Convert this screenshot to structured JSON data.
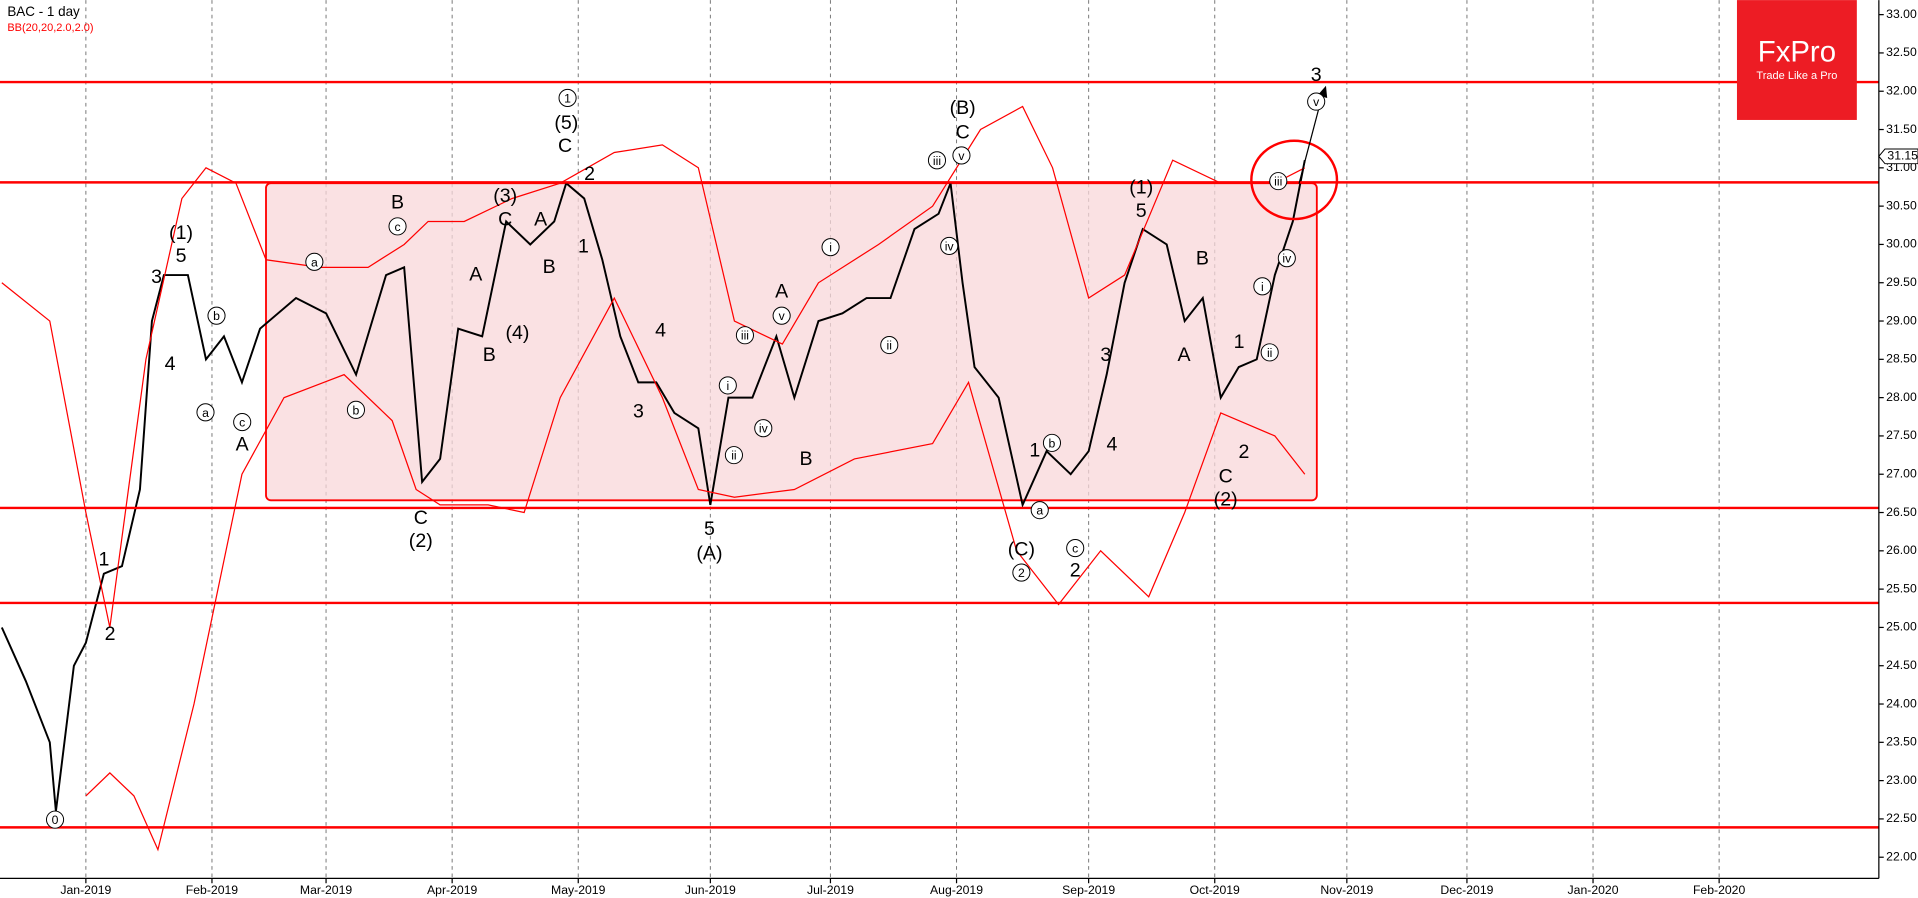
{
  "chart_data": {
    "type": "line",
    "title": "BAC  - 1 day",
    "subtitle": "BB(20,20,2.0,2.0)",
    "brand": "FxPro",
    "slogan": "Trade Like a Pro",
    "grid": true,
    "xlim": [
      -14.3,
      298.6
    ],
    "ylim": [
      21.82,
      33.19
    ],
    "xticks": [
      {
        "value": 0,
        "label": "Jan-2019"
      },
      {
        "value": 21,
        "label": "Feb-2019"
      },
      {
        "value": 40,
        "label": "Mar-2019"
      },
      {
        "value": 61,
        "label": "Apr-2019"
      },
      {
        "value": 82,
        "label": "May-2019"
      },
      {
        "value": 104,
        "label": "Jun-2019"
      },
      {
        "value": 124,
        "label": "Jul-2019"
      },
      {
        "value": 145,
        "label": "Aug-2019"
      },
      {
        "value": 167,
        "label": "Sep-2019"
      },
      {
        "value": 188,
        "label": "Oct-2019"
      },
      {
        "value": 210,
        "label": "Nov-2019"
      },
      {
        "value": 230,
        "label": "Dec-2019"
      },
      {
        "value": 251,
        "label": "Jan-2020"
      },
      {
        "value": 272,
        "label": "Feb-2020"
      }
    ],
    "yticks": [
      {
        "value": 22,
        "label": "22.00"
      },
      {
        "value": 22.5,
        "label": "22.50"
      },
      {
        "value": 23,
        "label": "23.00"
      },
      {
        "value": 23.5,
        "label": "23.50"
      },
      {
        "value": 24,
        "label": "24.00"
      },
      {
        "value": 24.5,
        "label": "24.50"
      },
      {
        "value": 25,
        "label": "25.00"
      },
      {
        "value": 25.5,
        "label": "25.50"
      },
      {
        "value": 26,
        "label": "26.00"
      },
      {
        "value": 26.5,
        "label": "26.50"
      },
      {
        "value": 27,
        "label": "27.00"
      },
      {
        "value": 27.5,
        "label": "27.50"
      },
      {
        "value": 28,
        "label": "28.00"
      },
      {
        "value": 28.5,
        "label": "28.50"
      },
      {
        "value": 29,
        "label": "29.00"
      },
      {
        "value": 29.5,
        "label": "29.50"
      },
      {
        "value": 30,
        "label": "30.00"
      },
      {
        "value": 30.5,
        "label": "30.50"
      },
      {
        "value": 31,
        "label": "31.00"
      },
      {
        "value": 31.5,
        "label": "31.50"
      },
      {
        "value": 32,
        "label": "32.00"
      },
      {
        "value": 32.5,
        "label": "32.50"
      },
      {
        "value": 33,
        "label": "33.00"
      }
    ],
    "last_price": 31.15,
    "levels": [
      32.12,
      30.81,
      26.56,
      25.32,
      22.39
    ],
    "level_color": "#ff0000",
    "zone": {
      "x": [
        30,
        205
      ],
      "y": [
        26.66,
        30.8
      ],
      "color": "#f8d7d9"
    },
    "series": [
      {
        "color": "#000000",
        "x": [
          -14,
          -10,
          -6,
          -5,
          -2,
          0,
          3,
          6,
          9,
          11,
          13,
          17,
          20,
          23,
          26,
          29,
          35,
          40,
          45,
          50,
          53,
          56,
          59,
          62,
          66,
          70,
          74,
          78,
          80,
          83,
          86,
          89,
          92,
          95,
          98,
          102,
          104,
          107,
          111,
          115,
          118,
          122,
          126,
          130,
          134,
          138,
          142,
          144,
          146,
          148,
          152,
          156,
          160,
          164,
          167,
          170,
          173,
          176,
          180,
          183,
          186,
          189,
          192,
          195,
          198,
          201,
          203
        ],
        "values": [
          25.0,
          24.3,
          23.5,
          22.6,
          24.5,
          24.8,
          25.7,
          25.8,
          26.8,
          29.0,
          29.6,
          29.6,
          28.5,
          28.8,
          28.2,
          28.9,
          29.3,
          29.1,
          28.3,
          29.6,
          29.7,
          26.9,
          27.2,
          28.9,
          28.8,
          30.3,
          30.0,
          30.3,
          30.8,
          30.6,
          29.8,
          28.8,
          28.2,
          28.2,
          27.8,
          27.6,
          26.6,
          28.0,
          28.0,
          28.8,
          28.0,
          29.0,
          29.1,
          29.3,
          29.3,
          30.2,
          30.4,
          30.8,
          29.5,
          28.4,
          28.0,
          26.6,
          27.3,
          27.0,
          27.3,
          28.3,
          29.5,
          30.2,
          30.0,
          29.0,
          29.3,
          28.0,
          28.4,
          28.5,
          29.6,
          30.3,
          31.1
        ]
      },
      {
        "color": "#ff0000",
        "x": [
          -14,
          -6,
          0,
          4,
          10,
          16,
          20,
          25,
          30,
          39,
          47,
          53,
          57,
          63,
          71,
          79,
          88,
          96,
          102,
          108,
          116,
          122,
          132,
          141,
          149,
          156,
          161,
          167,
          173,
          181,
          189,
          198,
          203
        ],
        "values": [
          29.5,
          29.0,
          26.5,
          25.0,
          28.5,
          30.6,
          31.0,
          30.8,
          29.8,
          29.7,
          29.7,
          30.0,
          30.3,
          30.3,
          30.6,
          30.8,
          31.2,
          31.3,
          31.0,
          29.0,
          28.7,
          29.5,
          30.0,
          30.5,
          31.5,
          31.8,
          31.0,
          29.3,
          29.6,
          31.1,
          30.8,
          30.8,
          31.0
        ]
      },
      {
        "color": "#ff0000",
        "x": [
          0,
          4,
          8,
          12,
          18,
          26,
          33,
          43,
          51,
          55,
          59,
          67,
          73,
          79,
          88,
          96,
          102,
          108,
          118,
          128,
          141,
          147,
          155,
          162,
          169,
          177,
          183,
          189,
          198,
          203
        ],
        "values": [
          22.8,
          23.1,
          22.8,
          22.1,
          24.0,
          27.0,
          28.0,
          28.3,
          27.7,
          26.8,
          26.6,
          26.6,
          26.5,
          28.0,
          29.3,
          28.0,
          26.8,
          26.7,
          26.8,
          27.2,
          27.4,
          28.2,
          26.0,
          25.3,
          26.0,
          25.4,
          26.5,
          27.8,
          27.5,
          27.0
        ]
      }
    ],
    "annotations": [
      "0",
      "1",
      "2",
      "3",
      "4",
      "5",
      "(1)",
      "a",
      "b",
      "c",
      "A",
      "a",
      "b",
      "B",
      "c",
      "C",
      "(2)",
      "A",
      "B",
      "(3)",
      "C",
      "(4)",
      "A",
      "B",
      "1",
      "(5)",
      "C",
      "2",
      "1",
      "3",
      "4",
      "5",
      "(A)",
      "i",
      "ii",
      "iii",
      "iv",
      "A",
      "v",
      "B",
      "i",
      "ii",
      "iii",
      "iv",
      "v",
      "(B)",
      "C",
      "1",
      "b",
      "a",
      "(C)",
      "2",
      "c",
      "2",
      "3",
      "4",
      "(1)",
      "5",
      "B",
      "A",
      "1",
      "C",
      "(2)",
      "2",
      "i",
      "ii",
      "iii",
      "iv",
      "3",
      "v"
    ]
  }
}
